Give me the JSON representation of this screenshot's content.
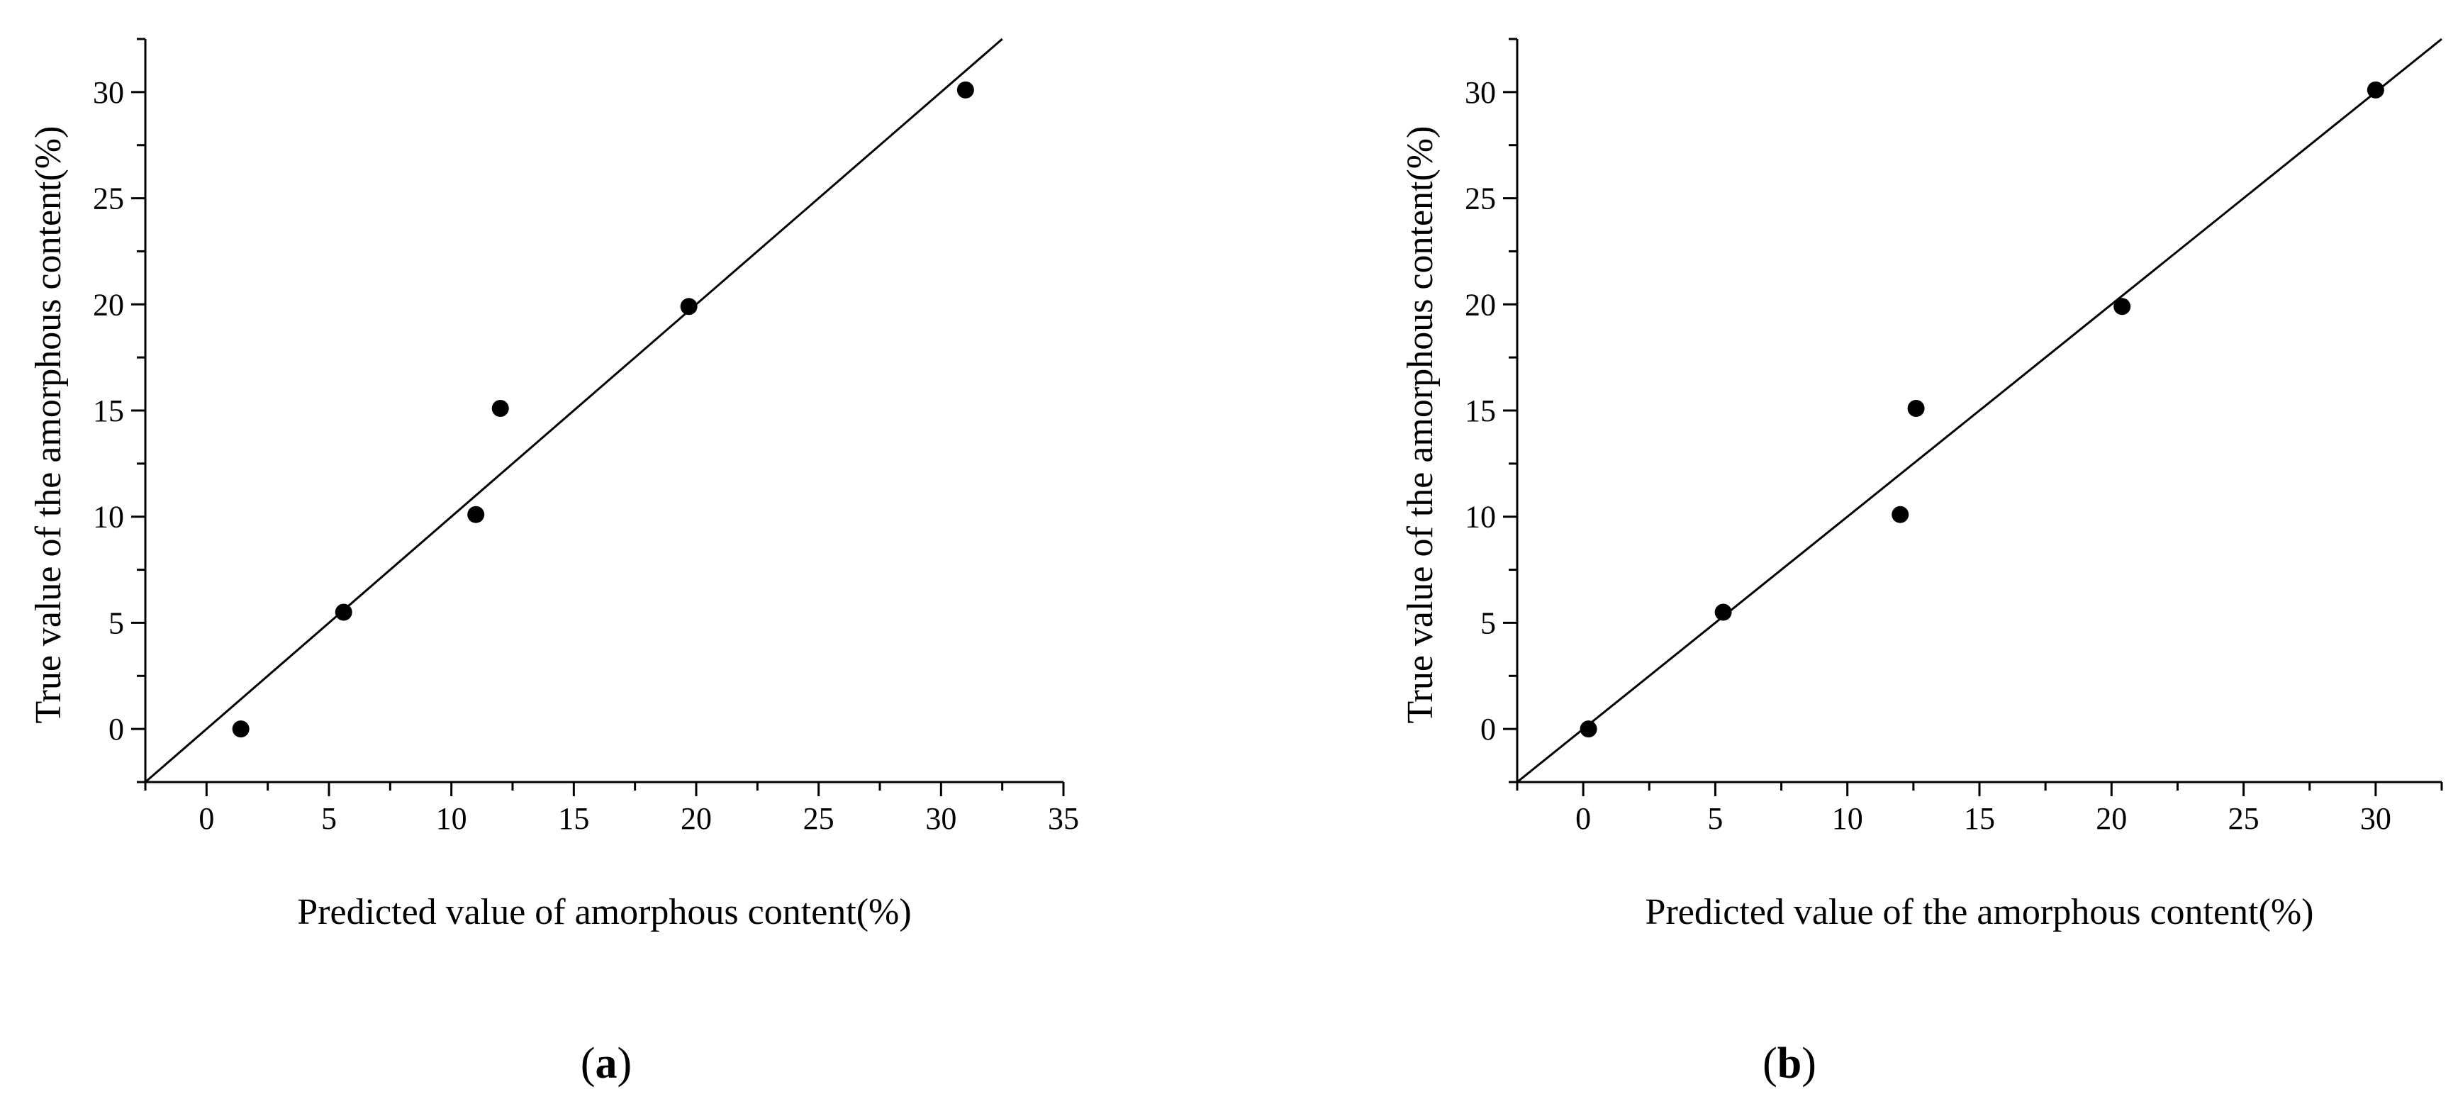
{
  "chart_data": [
    {
      "type": "scatter",
      "panel_label": "a",
      "xlabel": "Predicted value of amorphous content(%)",
      "ylabel": "True value of the amorphous content(%)",
      "xlim": [
        -2.5,
        35
      ],
      "ylim": [
        -2.5,
        32.5
      ],
      "xticks": [
        0,
        5,
        10,
        15,
        20,
        25,
        30,
        35
      ],
      "yticks": [
        0,
        5,
        10,
        15,
        20,
        25,
        30
      ],
      "grid": false,
      "points": [
        {
          "x": 1.4,
          "y": 0.0
        },
        {
          "x": 5.6,
          "y": 5.5
        },
        {
          "x": 11.0,
          "y": 10.1
        },
        {
          "x": 12.0,
          "y": 15.1
        },
        {
          "x": 19.7,
          "y": 19.9
        },
        {
          "x": 31.0,
          "y": 30.1
        }
      ],
      "reference_line": {
        "slope": 1,
        "intercept": 0
      }
    },
    {
      "type": "scatter",
      "panel_label": "b",
      "xlabel": "Predicted value of the amorphous content(%)",
      "ylabel": "True value of the amorphous content(%)",
      "xlim": [
        -2.5,
        32.5
      ],
      "ylim": [
        -2.5,
        32.5
      ],
      "xticks": [
        0,
        5,
        10,
        15,
        20,
        25,
        30
      ],
      "yticks": [
        0,
        5,
        10,
        15,
        20,
        25,
        30
      ],
      "grid": false,
      "points": [
        {
          "x": 0.2,
          "y": 0.0
        },
        {
          "x": 5.3,
          "y": 5.5
        },
        {
          "x": 12.0,
          "y": 10.1
        },
        {
          "x": 12.6,
          "y": 15.1
        },
        {
          "x": 20.4,
          "y": 19.9
        },
        {
          "x": 30.0,
          "y": 30.1
        }
      ],
      "reference_line": {
        "slope": 1,
        "intercept": 0
      }
    }
  ]
}
